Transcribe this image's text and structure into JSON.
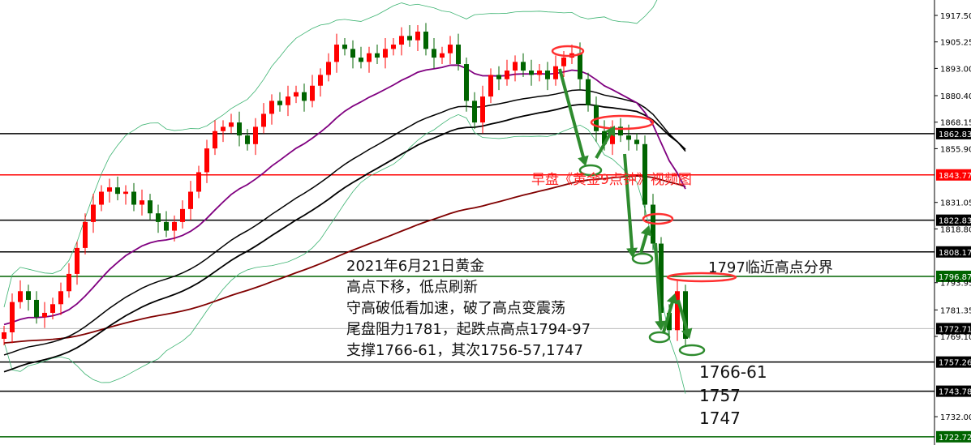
{
  "chart_data": {
    "type": "candlestick",
    "ylim": [
      1719.75,
      1925
    ],
    "y_ticks": [
      1917.5,
      1905.25,
      1893.0,
      1880.4,
      1868.15,
      1855.9,
      1831.05,
      1818.8,
      1793.95,
      1781.35,
      1769.1,
      1732.0
    ],
    "closes": [
      1771,
      1785,
      1790,
      1786,
      1778,
      1780,
      1784,
      1790,
      1798,
      1810,
      1822,
      1830,
      1836,
      1838,
      1835,
      1836,
      1830,
      1832,
      1826,
      1822,
      1818,
      1822,
      1828,
      1836,
      1845,
      1856,
      1864,
      1866,
      1868,
      1862,
      1858,
      1866,
      1872,
      1878,
      1876,
      1880,
      1882,
      1878,
      1885,
      1890,
      1896,
      1904,
      1902,
      1898,
      1896,
      1900,
      1898,
      1902,
      1904,
      1908,
      1906,
      1910,
      1902,
      1898,
      1900,
      1904,
      1895,
      1878,
      1868,
      1880,
      1890,
      1888,
      1892,
      1896,
      1892,
      1890,
      1892,
      1888,
      1894,
      1898,
      1900,
      1888,
      1876,
      1864,
      1858,
      1866,
      1862,
      1860,
      1858,
      1830,
      1812,
      1780,
      1772,
      1790,
      1768
    ],
    "levels": [
      {
        "price": "1862.83",
        "color": "#000000"
      },
      {
        "price": "1843.77",
        "color": "#ff0000"
      },
      {
        "price": "1822.83",
        "color": "#000000"
      },
      {
        "price": "1808.17",
        "color": "#000000"
      },
      {
        "price": "1796.87",
        "color": "#006400"
      },
      {
        "price": "1772.71",
        "color": "#000000",
        "thin": true
      },
      {
        "price": "1757.26",
        "color": "#000000"
      },
      {
        "price": "1743.78",
        "color": "#000000"
      },
      {
        "price": "1722.72",
        "color": "#006400"
      }
    ],
    "colors": {
      "bull": "#ff0000",
      "bear": "#006400",
      "ma_fast": "#800080",
      "ma_slow": "#000000",
      "ma_long": "#800000",
      "band": "#3cb371"
    }
  },
  "watermark": "早盘《黄金9点钟》视频图",
  "notes": {
    "title": "2021年6月21日黄金",
    "line1": "高点下移，低点刷新",
    "line2": "守高破低看加速，破了高点变震荡",
    "line3": "尾盘阻力1781，起跌点高点1794-97",
    "line4": "支撑1766-61，其次1756-57,1747"
  },
  "labels": {
    "boundary": "1797临近高点分界",
    "s1": "1766-61",
    "s2": "1757",
    "s3": "1747"
  }
}
